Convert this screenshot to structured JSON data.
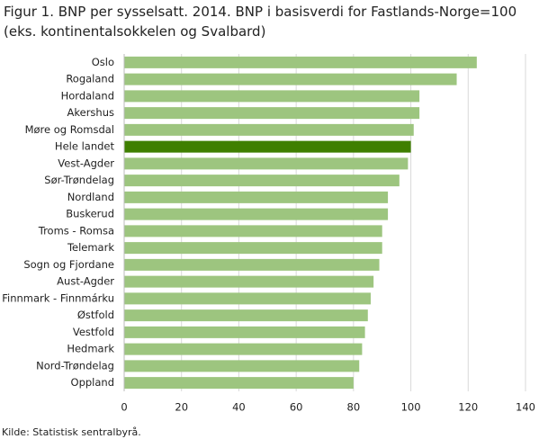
{
  "chart_data": {
    "type": "barh",
    "title": "Figur 1. BNP per sysselsatt. 2014. BNP i basisverdi for Fastlands-Norge=100 (eks. kontinentalsokkelen og Svalbard)",
    "source": "Kilde: Statistisk sentralbyrå.",
    "categories": [
      "Oslo",
      "Rogaland",
      "Hordaland",
      "Akershus",
      "Møre og Romsdal",
      "Hele landet",
      "Vest-Agder",
      "Sør-Trøndelag",
      "Nordland",
      "Buskerud",
      "Troms - Romsa",
      "Telemark",
      "Sogn og Fjordane",
      "Aust-Agder",
      "Finnmark - Finnmárku",
      "Østfold",
      "Vestfold",
      "Hedmark",
      "Nord-Trøndelag",
      "Oppland"
    ],
    "values": [
      123,
      116,
      103,
      103,
      101,
      100,
      99,
      96,
      92,
      92,
      90,
      90,
      89,
      87,
      86,
      85,
      84,
      83,
      82,
      80
    ],
    "colors": [
      "#9dc57f",
      "#9dc57f",
      "#9dc57f",
      "#9dc57f",
      "#9dc57f",
      "#3f7f00",
      "#9dc57f",
      "#9dc57f",
      "#9dc57f",
      "#9dc57f",
      "#9dc57f",
      "#9dc57f",
      "#9dc57f",
      "#9dc57f",
      "#9dc57f",
      "#9dc57f",
      "#9dc57f",
      "#9dc57f",
      "#9dc57f",
      "#9dc57f"
    ],
    "xlim": [
      0,
      140
    ],
    "xticks": [
      0,
      20,
      40,
      60,
      80,
      100,
      120,
      140
    ],
    "grid": true
  }
}
